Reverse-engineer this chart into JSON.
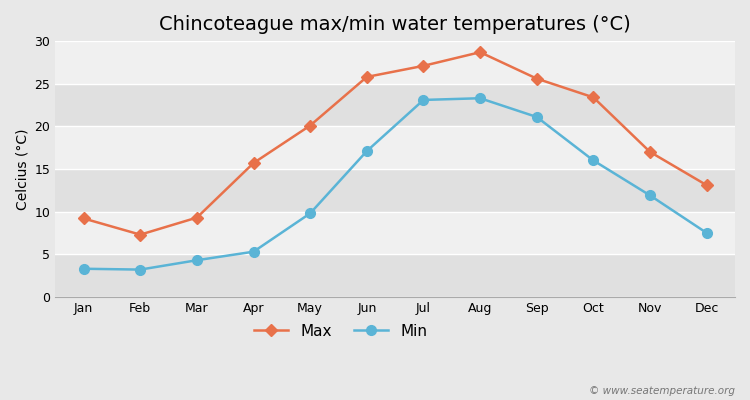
{
  "title": "Chincoteague max/min water temperatures (°C)",
  "ylabel": "Celcius (°C)",
  "months": [
    "Jan",
    "Feb",
    "Mar",
    "Apr",
    "May",
    "Jun",
    "Jul",
    "Aug",
    "Sep",
    "Oct",
    "Nov",
    "Dec"
  ],
  "max_temps": [
    9.2,
    7.3,
    9.3,
    15.7,
    20.1,
    25.8,
    27.1,
    28.7,
    25.6,
    23.4,
    17.0,
    13.1
  ],
  "min_temps": [
    3.3,
    3.2,
    4.3,
    5.3,
    9.8,
    17.1,
    23.1,
    23.3,
    21.1,
    16.0,
    11.9,
    7.5
  ],
  "max_color": "#e8714a",
  "min_color": "#5ab4d6",
  "bg_color": "#e8e8e8",
  "plot_bg_color": "#ebebeb",
  "band_color_light": "#f0f0f0",
  "band_color_dark": "#e0e0e0",
  "ylim": [
    0,
    30
  ],
  "yticks": [
    0,
    5,
    10,
    15,
    20,
    25,
    30
  ],
  "grid_color": "#ffffff",
  "max_marker": "D",
  "min_marker": "o",
  "max_marker_size": 6,
  "min_marker_size": 7,
  "line_width": 1.8,
  "title_fontsize": 14,
  "axis_label_fontsize": 10,
  "tick_fontsize": 9,
  "legend_fontsize": 11,
  "watermark": "© www.seatemperature.org"
}
